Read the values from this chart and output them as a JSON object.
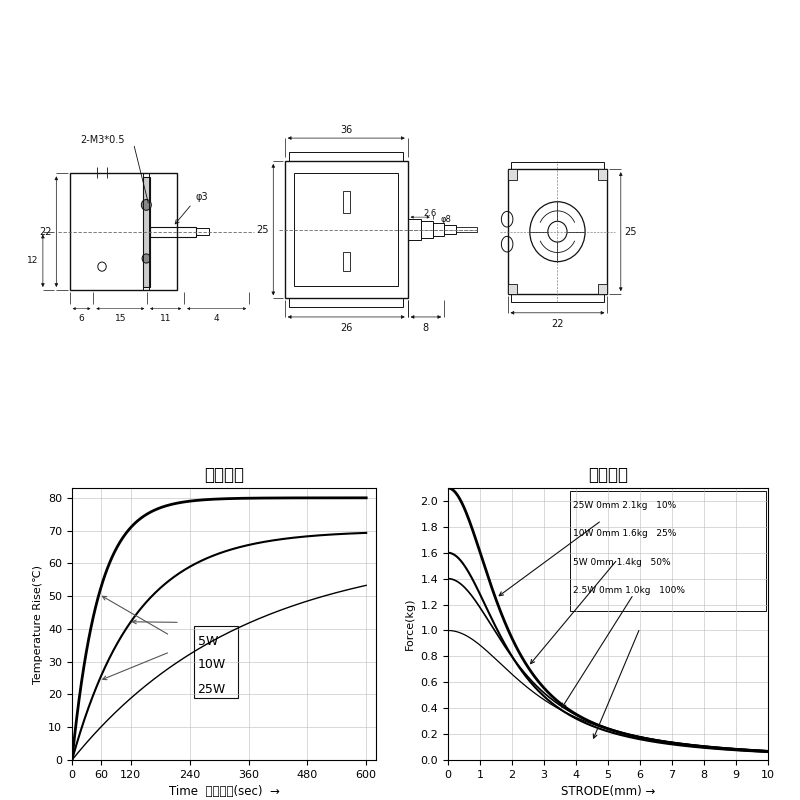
{
  "bg_color": "#ffffff",
  "temp_title": "温度特性",
  "force_title": "吸力特性",
  "temp_xlabel": "Time 通电時間(sec) →",
  "temp_ylabel": "Temperature Rise(℃)",
  "force_xlabel": "STRODE(mm) →",
  "force_ylabel": "Force(kg)",
  "temp_xticks": [
    0,
    60,
    120,
    240,
    360,
    480,
    600
  ],
  "temp_yticks": [
    0,
    10,
    20,
    30,
    40,
    50,
    60,
    70,
    80
  ],
  "temp_xlim": [
    0,
    620
  ],
  "temp_ylim": [
    0,
    83
  ],
  "force_xticks": [
    0,
    1,
    2,
    3,
    4,
    5,
    6,
    7,
    8,
    9,
    10
  ],
  "force_yticks": [
    0.0,
    0.2,
    0.4,
    0.6,
    0.8,
    1.0,
    1.2,
    1.4,
    1.6,
    1.8,
    2.0
  ],
  "force_xlim": [
    0,
    10
  ],
  "force_ylim": [
    0.0,
    2.1
  ],
  "force_legend": [
    "25W 0mm 2.1kg   10%",
    "10W 0mm 1.6kg   25%",
    "5W 0mm 1.4kg   50%",
    "2.5W 0mm 1.0kg   100%"
  ],
  "black": "#111111",
  "gray": "#888888",
  "light_gray": "#aaaaaa"
}
